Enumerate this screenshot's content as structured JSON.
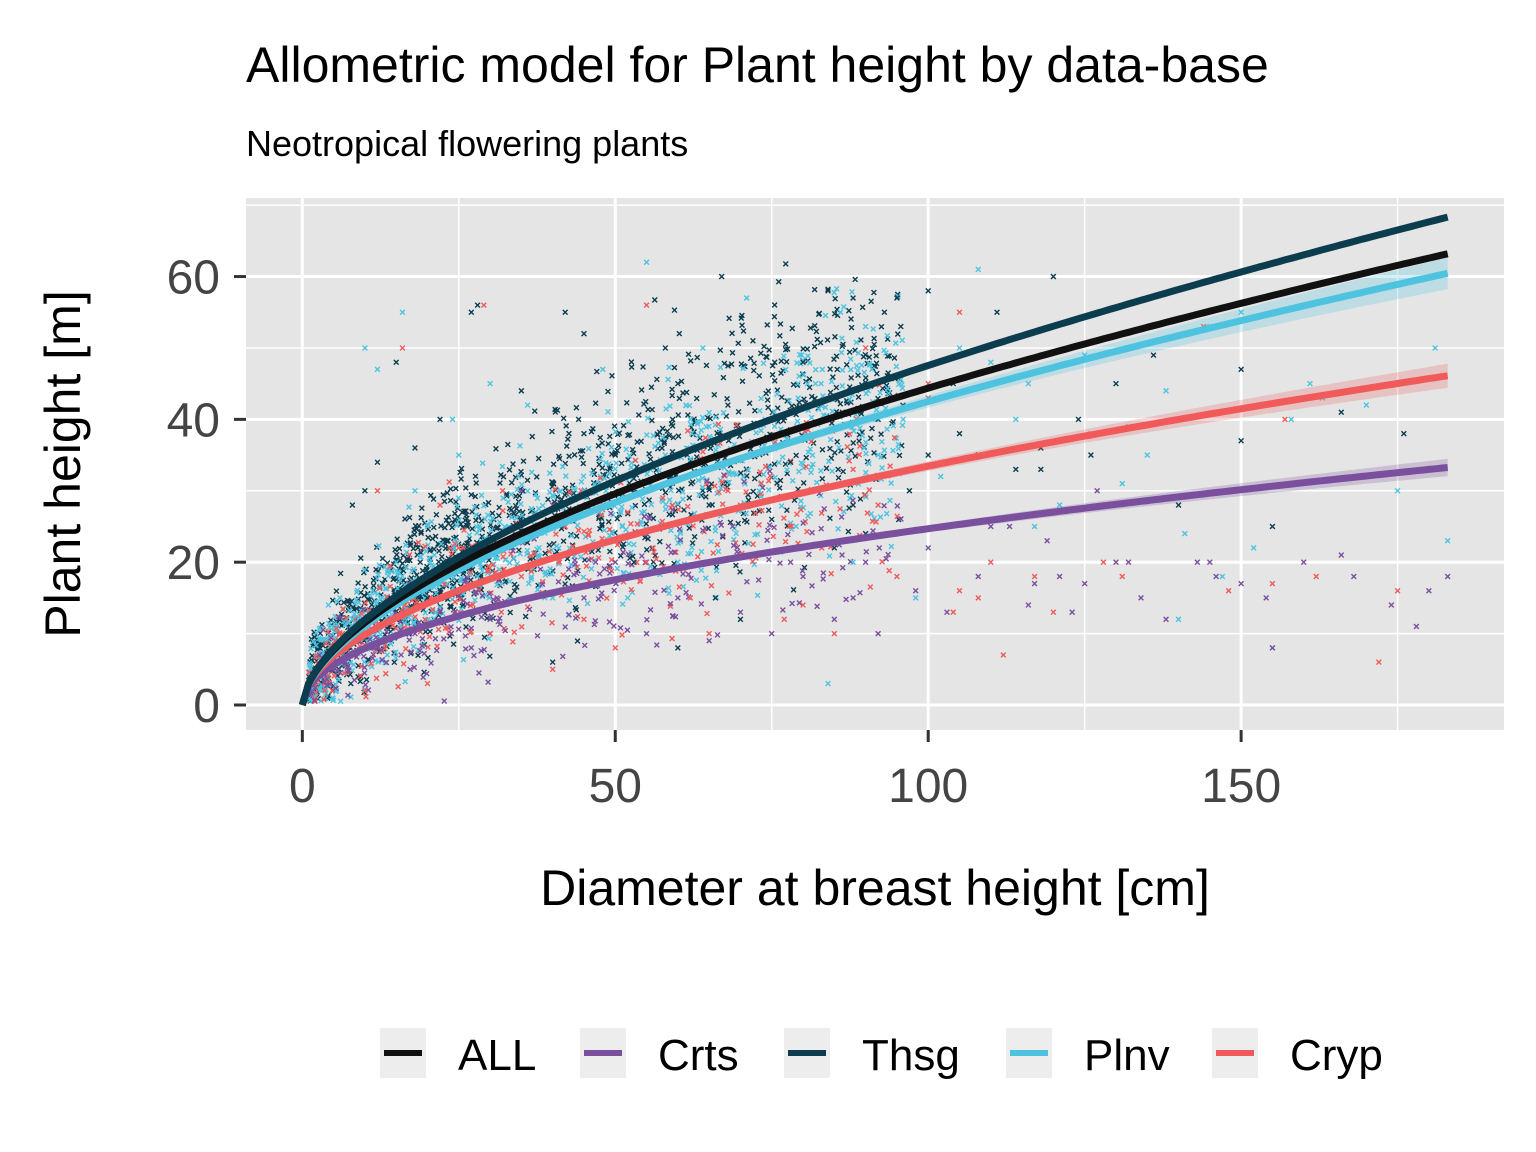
{
  "chart_data": {
    "type": "scatter",
    "title": "Allometric model for Plant height by data-base",
    "subtitle": "Neotropical flowering plants",
    "xlabel": "Diameter at breast height [cm]",
    "ylabel": "Plant height [m]",
    "xlim": [
      -9,
      192
    ],
    "ylim": [
      -3.5,
      71
    ],
    "x_ticks": [
      0,
      50,
      100,
      150
    ],
    "x_tick_labels": [
      "0",
      "50",
      "100",
      "150"
    ],
    "y_ticks": [
      0,
      20,
      40,
      60
    ],
    "y_tick_labels": [
      "0",
      "20",
      "40",
      "60"
    ],
    "grid": true,
    "legend_position": "bottom",
    "series": [
      {
        "name": "ALL",
        "color": "#111111",
        "model": {
          "a": 3.0,
          "b": 0.585
        },
        "x_range": [
          0,
          183
        ]
      },
      {
        "name": "Crts",
        "color": "#7a4f9e",
        "model": {
          "a": 2.55,
          "b": 0.493
        },
        "x_range": [
          0,
          183
        ]
      },
      {
        "name": "Thsg",
        "color": "#0b3d4f",
        "model": {
          "a": 3.0,
          "b": 0.6
        },
        "x_range": [
          0,
          183
        ]
      },
      {
        "name": "Plnv",
        "color": "#4dc3e0",
        "model": {
          "a": 2.9,
          "b": 0.583
        },
        "x_range": [
          0,
          183
        ]
      },
      {
        "name": "Cryp",
        "color": "#f05a5a",
        "model": {
          "a": 2.9,
          "b": 0.531
        },
        "x_range": [
          0,
          183
        ]
      }
    ],
    "scatter_points": {
      "Thsg": [
        [
          27,
          55
        ],
        [
          28,
          56
        ],
        [
          42,
          55
        ],
        [
          67,
          60
        ],
        [
          72,
          51
        ],
        [
          84,
          58
        ],
        [
          88,
          57
        ],
        [
          95,
          57
        ],
        [
          100,
          58
        ],
        [
          111,
          55
        ],
        [
          120,
          60
        ],
        [
          124,
          40
        ],
        [
          130,
          45
        ],
        [
          136,
          49
        ],
        [
          150,
          47
        ],
        [
          150,
          37
        ],
        [
          166,
          41
        ],
        [
          176,
          38
        ],
        [
          149,
          30
        ],
        [
          93,
          55
        ],
        [
          80,
          48
        ],
        [
          60,
          45
        ],
        [
          58,
          50
        ],
        [
          100,
          35
        ],
        [
          104,
          45
        ],
        [
          97,
          30
        ],
        [
          108,
          35
        ],
        [
          114,
          33
        ],
        [
          22,
          40
        ],
        [
          18,
          36
        ],
        [
          15,
          48
        ],
        [
          8,
          28
        ],
        [
          10,
          30
        ],
        [
          12,
          34
        ],
        [
          35,
          44
        ],
        [
          45,
          38
        ],
        [
          55,
          30
        ],
        [
          65,
          28
        ],
        [
          75,
          26
        ],
        [
          85,
          22
        ],
        [
          90,
          24
        ],
        [
          70,
          12
        ],
        [
          60,
          8
        ],
        [
          40,
          6
        ],
        [
          30,
          10
        ],
        [
          20,
          15
        ],
        [
          105,
          38
        ],
        [
          118,
          33
        ],
        [
          118,
          36
        ],
        [
          126,
          35
        ],
        [
          140,
          28
        ],
        [
          155,
          25
        ],
        [
          45,
          52
        ],
        [
          50,
          35
        ],
        [
          68,
          42
        ],
        [
          78,
          34
        ],
        [
          53,
          20
        ],
        [
          66,
          15
        ],
        [
          88,
          28
        ],
        [
          92,
          40
        ]
      ],
      "Plnv": [
        [
          55,
          62
        ],
        [
          16,
          55
        ],
        [
          10,
          50
        ],
        [
          12,
          47
        ],
        [
          24,
          40
        ],
        [
          30,
          45
        ],
        [
          64,
          50
        ],
        [
          71,
          57
        ],
        [
          86,
          55
        ],
        [
          90,
          53
        ],
        [
          108,
          61
        ],
        [
          114,
          40
        ],
        [
          116,
          45
        ],
        [
          132,
          39
        ],
        [
          131,
          31
        ],
        [
          140,
          12
        ],
        [
          141,
          24
        ],
        [
          145,
          53
        ],
        [
          150,
          55
        ],
        [
          152,
          22
        ],
        [
          155,
          8
        ],
        [
          161,
          45
        ],
        [
          163,
          43
        ],
        [
          181,
          50
        ],
        [
          183,
          23
        ],
        [
          121,
          28
        ],
        [
          96,
          40
        ],
        [
          84,
          3
        ],
        [
          60,
          20
        ],
        [
          40,
          15
        ],
        [
          33,
          25
        ],
        [
          45,
          30
        ],
        [
          58,
          35
        ],
        [
          77,
          38
        ],
        [
          82,
          45
        ],
        [
          102,
          32
        ],
        [
          110,
          48
        ],
        [
          117,
          25
        ],
        [
          126,
          38
        ],
        [
          135,
          35
        ],
        [
          20,
          25
        ],
        [
          15,
          20
        ],
        [
          8,
          12
        ],
        [
          25,
          35
        ],
        [
          36,
          42
        ],
        [
          48,
          47
        ],
        [
          62,
          40
        ],
        [
          73,
          30
        ],
        [
          88,
          20
        ],
        [
          98,
          15
        ],
        [
          105,
          50
        ],
        [
          125,
          49
        ],
        [
          138,
          44
        ],
        [
          147,
          18
        ],
        [
          158,
          40
        ],
        [
          170,
          42
        ],
        [
          175,
          30
        ],
        [
          6,
          15
        ],
        [
          18,
          30
        ],
        [
          28,
          18
        ]
      ],
      "Cryp": [
        [
          29,
          56
        ],
        [
          16,
          50
        ],
        [
          55,
          56
        ],
        [
          90,
          50
        ],
        [
          100,
          45
        ],
        [
          105,
          55
        ],
        [
          100,
          43
        ],
        [
          104,
          13
        ],
        [
          105,
          16
        ],
        [
          108,
          15
        ],
        [
          112,
          7
        ],
        [
          117,
          18
        ],
        [
          120,
          13
        ],
        [
          128,
          20
        ],
        [
          131,
          18
        ],
        [
          144,
          53
        ],
        [
          148,
          16
        ],
        [
          155,
          17
        ],
        [
          157,
          40
        ],
        [
          162,
          18
        ],
        [
          172,
          6
        ],
        [
          175,
          16
        ],
        [
          80,
          14
        ],
        [
          85,
          10
        ],
        [
          62,
          15
        ],
        [
          50,
          8
        ],
        [
          40,
          5
        ],
        [
          30,
          10
        ],
        [
          20,
          3
        ],
        [
          10,
          2
        ],
        [
          45,
          12
        ],
        [
          60,
          35
        ],
        [
          70,
          28
        ],
        [
          83,
          22
        ],
        [
          95,
          18
        ],
        [
          88,
          33
        ],
        [
          77,
          12
        ],
        [
          65,
          10
        ],
        [
          55,
          20
        ],
        [
          35,
          18
        ],
        [
          25,
          22
        ],
        [
          15,
          14
        ],
        [
          12,
          30
        ],
        [
          22,
          28
        ],
        [
          32,
          30
        ],
        [
          42,
          25
        ],
        [
          52,
          27
        ],
        [
          68,
          30
        ],
        [
          92,
          28
        ],
        [
          110,
          20
        ]
      ],
      "Crts": [
        [
          35,
          30
        ],
        [
          40,
          28
        ],
        [
          50,
          20
        ],
        [
          60,
          15
        ],
        [
          65,
          9
        ],
        [
          75,
          10
        ],
        [
          80,
          18
        ],
        [
          85,
          12
        ],
        [
          88,
          15
        ],
        [
          90,
          20
        ],
        [
          100,
          22
        ],
        [
          103,
          13
        ],
        [
          108,
          18
        ],
        [
          113,
          25
        ],
        [
          117,
          17
        ],
        [
          119,
          23
        ],
        [
          123,
          13
        ],
        [
          127,
          30
        ],
        [
          130,
          20
        ],
        [
          134,
          15
        ],
        [
          138,
          12
        ],
        [
          143,
          20
        ],
        [
          146,
          18
        ],
        [
          150,
          17
        ],
        [
          154,
          15
        ],
        [
          160,
          20
        ],
        [
          166,
          21
        ],
        [
          168,
          18
        ],
        [
          174,
          14
        ],
        [
          178,
          11
        ],
        [
          180,
          16
        ],
        [
          183,
          18
        ],
        [
          155,
          8
        ],
        [
          12,
          8
        ],
        [
          18,
          10
        ],
        [
          22,
          13
        ],
        [
          27,
          8
        ],
        [
          30,
          12
        ],
        [
          45,
          15
        ],
        [
          55,
          10
        ],
        [
          70,
          13
        ],
        [
          78,
          20
        ],
        [
          92,
          10
        ],
        [
          98,
          16
        ],
        [
          110,
          25
        ],
        [
          116,
          14
        ],
        [
          121,
          18
        ],
        [
          125,
          17
        ],
        [
          132,
          20
        ],
        [
          145,
          20
        ]
      ]
    }
  }
}
